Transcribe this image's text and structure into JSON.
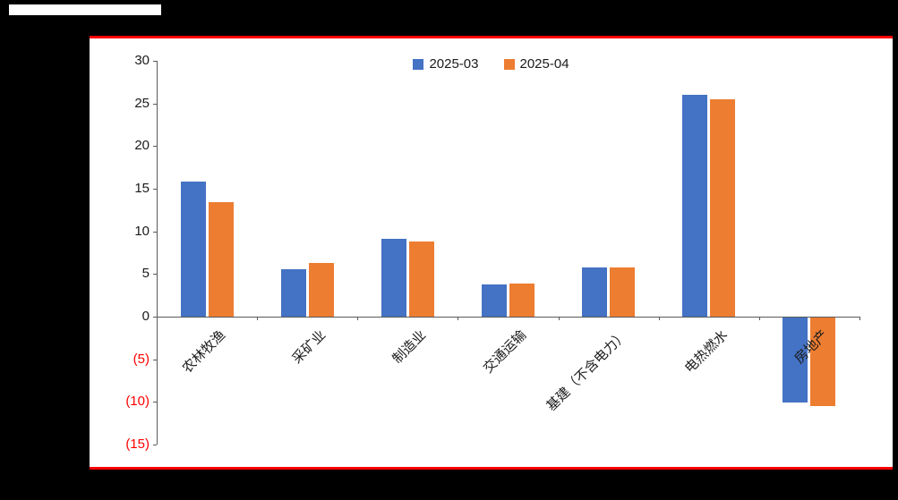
{
  "chart_data": {
    "type": "bar",
    "title": "",
    "categories": [
      "农林牧渔",
      "采矿业",
      "制造业",
      "交通运输",
      "基建（不含电力）",
      "电热燃水",
      "房地产"
    ],
    "series": [
      {
        "name": "2025-03",
        "color": "#4472C4",
        "values": [
          15.8,
          5.6,
          9.1,
          3.8,
          5.8,
          26.0,
          -10.0
        ]
      },
      {
        "name": "2025-04",
        "color": "#ED7D31",
        "values": [
          13.4,
          6.3,
          8.8,
          3.9,
          5.8,
          25.5,
          -10.4
        ]
      }
    ],
    "ylim": [
      -15,
      30
    ],
    "ytick_step": 5,
    "yticks": [
      {
        "value": 30,
        "label": "30"
      },
      {
        "value": 25,
        "label": "25"
      },
      {
        "value": 20,
        "label": "20"
      },
      {
        "value": 15,
        "label": "15"
      },
      {
        "value": 10,
        "label": "10"
      },
      {
        "value": 5,
        "label": "5"
      },
      {
        "value": 0,
        "label": "0"
      },
      {
        "value": -5,
        "label": "(5)"
      },
      {
        "value": -10,
        "label": "(10)"
      },
      {
        "value": -15,
        "label": "(15)"
      }
    ],
    "grid": false,
    "legend_position": "top-center",
    "xlabel": "",
    "ylabel": "",
    "axis_color": "#595959",
    "text_color": "#1a1a1a",
    "negative_label_color": "#FF0000",
    "panel_border_color": "#FE0000",
    "panel_background": "#FFFFFF",
    "page_background": "#000000"
  }
}
